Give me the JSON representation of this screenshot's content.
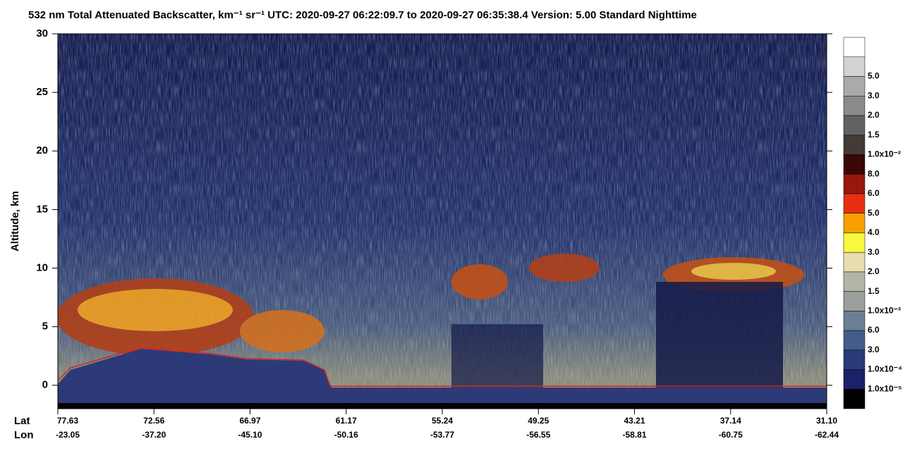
{
  "chart_data": {
    "type": "heatmap",
    "title": "532 nm Total Attenuated Backscatter, km⁻¹ sr⁻¹    UTC:  2020-09-27 06:22:09.7  to  2020-09-27 06:35:38.4    Version: 5.00  Standard  Nighttime",
    "ylabel": "Altitude, km",
    "ylim": [
      -2,
      30
    ],
    "yticks": [
      0,
      5,
      10,
      15,
      20,
      25,
      30
    ],
    "x_rows": [
      "Lat",
      "Lon"
    ],
    "lat": [
      "77.63",
      "72.56",
      "66.97",
      "61.17",
      "55.24",
      "49.25",
      "43.21",
      "37.14",
      "31.10"
    ],
    "lon": [
      "-23.05",
      "-37.20",
      "-45.10",
      "-50.16",
      "-53.77",
      "-56.55",
      "-58.81",
      "-60.75",
      "-62.44"
    ],
    "colorbar": {
      "colors": [
        "#000000",
        "#1c2168",
        "#283a78",
        "#445c88",
        "#6a7e94",
        "#9a9e9c",
        "#b4b4a6",
        "#e8dcb0",
        "#f8f840",
        "#f8a000",
        "#e83010",
        "#981810",
        "#3a0606",
        "#443a36",
        "#626262",
        "#8a8a8a",
        "#aaaaaa",
        "#d2d2d2",
        "#ffffff"
      ],
      "labels": [
        "1.0x10⁻⁵",
        "1.0x10⁻⁴",
        "3.0",
        "6.0",
        "1.0x10⁻³",
        "1.5",
        "2.0",
        "3.0",
        "4.0",
        "5.0",
        "6.0",
        "8.0",
        "1.0x10⁻²",
        "1.5",
        "2.0",
        "3.0",
        "5.0"
      ]
    }
  }
}
